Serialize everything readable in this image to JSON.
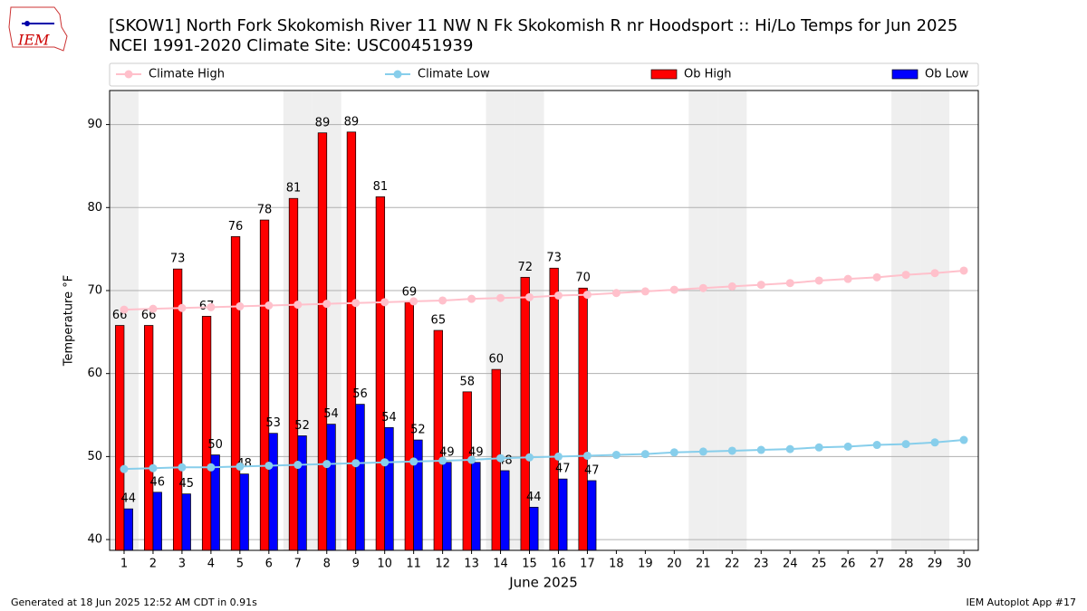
{
  "chart_data": {
    "type": "bar",
    "logo_text": "IEM",
    "title": "[SKOW1] North Fork Skokomish River 11 NW N Fk Skokomish R nr Hoodsport :: Hi/Lo Temps for Jun 2025",
    "subtitle": "NCEI 1991-2020 Climate Site: USC00451939",
    "x_label": "June 2025",
    "y_label": "Temperature °F",
    "footer_left": "Generated at 18 Jun 2025 12:52 AM CDT in 0.91s",
    "footer_right": "IEM Autoplot App #17",
    "x": [
      1,
      2,
      3,
      4,
      5,
      6,
      7,
      8,
      9,
      10,
      11,
      12,
      13,
      14,
      15,
      16,
      17,
      18,
      19,
      20,
      21,
      22,
      23,
      24,
      25,
      26,
      27,
      28,
      29,
      30
    ],
    "xlim": [
      0.5,
      30.5
    ],
    "xticks": [
      1,
      2,
      3,
      4,
      5,
      6,
      7,
      8,
      9,
      10,
      11,
      12,
      13,
      14,
      15,
      16,
      17,
      18,
      19,
      20,
      21,
      22,
      23,
      24,
      25,
      26,
      27,
      28,
      29,
      30
    ],
    "shaded_days": [
      1,
      7,
      8,
      14,
      15,
      21,
      22,
      28,
      29
    ],
    "ylim": [
      38.7,
      94.1
    ],
    "yticks": [
      40,
      50,
      60,
      70,
      80,
      90
    ],
    "grid": true,
    "series": [
      {
        "name": "Climate High",
        "type": "line",
        "color": "#ffc0cb",
        "values": [
          67.7,
          67.8,
          67.9,
          68.0,
          68.1,
          68.2,
          68.3,
          68.4,
          68.5,
          68.6,
          68.7,
          68.8,
          69.0,
          69.1,
          69.2,
          69.4,
          69.5,
          69.7,
          69.9,
          70.1,
          70.3,
          70.5,
          70.7,
          70.9,
          71.2,
          71.4,
          71.6,
          71.9,
          72.1,
          72.4
        ]
      },
      {
        "name": "Climate Low",
        "type": "line",
        "color": "#87ceeb",
        "values": [
          48.5,
          48.6,
          48.7,
          48.7,
          48.8,
          48.9,
          49.0,
          49.1,
          49.2,
          49.3,
          49.4,
          49.5,
          49.6,
          49.8,
          49.9,
          50.0,
          50.1,
          50.2,
          50.3,
          50.5,
          50.6,
          50.7,
          50.8,
          50.9,
          51.1,
          51.2,
          51.4,
          51.5,
          51.7,
          52.0
        ]
      },
      {
        "name": "Ob High",
        "type": "bar",
        "color": "#ff0000",
        "values": [
          65.8,
          65.8,
          72.6,
          66.9,
          76.5,
          78.5,
          81.1,
          89.0,
          89.1,
          81.3,
          68.6,
          65.2,
          57.8,
          60.5,
          71.6,
          72.7,
          70.3,
          null,
          null,
          null,
          null,
          null,
          null,
          null,
          null,
          null,
          null,
          null,
          null,
          null
        ],
        "value_labels": [
          "66",
          "66",
          "73",
          "67",
          "76",
          "78",
          "81",
          "89",
          "89",
          "81",
          "69",
          "65",
          "58",
          "60",
          "72",
          "73",
          "70",
          null,
          null,
          null,
          null,
          null,
          null,
          null,
          null,
          null,
          null,
          null,
          null,
          null
        ]
      },
      {
        "name": "Ob Low",
        "type": "bar",
        "color": "#0000ff",
        "values": [
          43.7,
          45.7,
          45.5,
          50.2,
          47.9,
          52.8,
          52.5,
          53.9,
          56.3,
          53.5,
          52.0,
          49.3,
          49.3,
          48.3,
          43.9,
          47.3,
          47.1,
          null,
          null,
          null,
          null,
          null,
          null,
          null,
          null,
          null,
          null,
          null,
          null,
          null
        ],
        "value_labels": [
          "44",
          "46",
          "45",
          "50",
          "48",
          "53",
          "52",
          "54",
          "56",
          "54",
          "52",
          "49",
          "49",
          "48",
          "44",
          "47",
          "47",
          null,
          null,
          null,
          null,
          null,
          null,
          null,
          null,
          null,
          null,
          null,
          null,
          null
        ]
      }
    ]
  }
}
